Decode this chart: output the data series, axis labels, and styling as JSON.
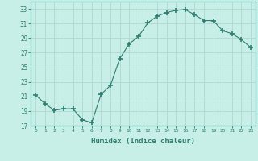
{
  "x": [
    0,
    1,
    2,
    3,
    4,
    5,
    6,
    7,
    8,
    9,
    10,
    11,
    12,
    13,
    14,
    15,
    16,
    17,
    18,
    19,
    20,
    21,
    22,
    23
  ],
  "y": [
    21.2,
    20.0,
    19.1,
    19.3,
    19.3,
    17.8,
    17.4,
    21.3,
    22.5,
    26.2,
    28.2,
    29.2,
    31.1,
    32.0,
    32.5,
    32.8,
    32.9,
    32.2,
    31.4,
    31.4,
    30.0,
    29.6,
    28.8,
    27.7
  ],
  "xlabel": "Humidex (Indice chaleur)",
  "ylim": [
    17,
    34
  ],
  "xlim": [
    -0.5,
    23.5
  ],
  "yticks": [
    17,
    19,
    21,
    23,
    25,
    27,
    29,
    31,
    33
  ],
  "xticks": [
    0,
    1,
    2,
    3,
    4,
    5,
    6,
    7,
    8,
    9,
    10,
    11,
    12,
    13,
    14,
    15,
    16,
    17,
    18,
    19,
    20,
    21,
    22,
    23
  ],
  "line_color": "#2e7d6e",
  "marker_color": "#2e7d6e",
  "bg_color": "#c8eee8",
  "grid_color": "#b0d8d0",
  "tick_color": "#2e7d6e",
  "label_color": "#2e7d6e",
  "font_family": "monospace"
}
